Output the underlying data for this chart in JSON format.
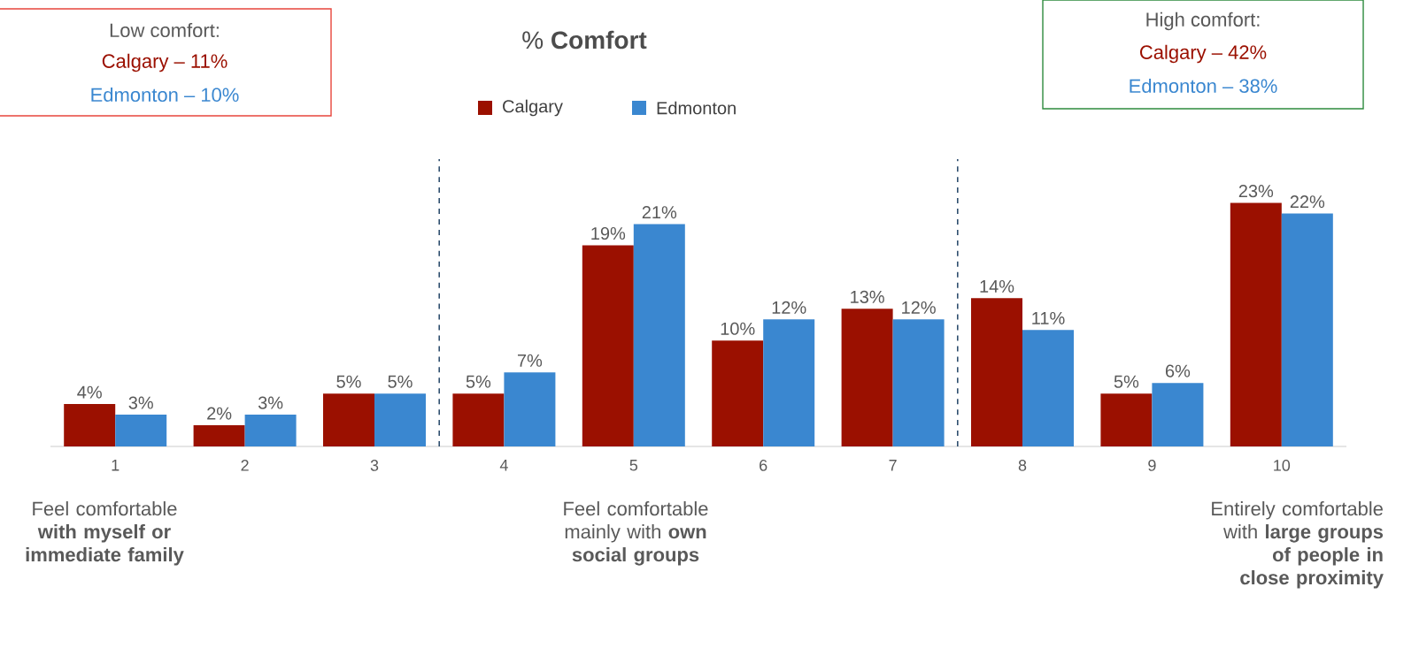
{
  "chart_data": {
    "type": "bar",
    "title": "% **Comfort**",
    "categories": [
      "1",
      "2",
      "3",
      "4",
      "5",
      "6",
      "7",
      "8",
      "9",
      "10"
    ],
    "series": [
      {
        "name": "Calgary",
        "color": "#9b1000",
        "values": [
          4,
          2,
          5,
          5,
          19,
          10,
          13,
          14,
          5,
          23
        ],
        "value_labels": [
          "4%",
          "2%",
          "5%",
          "5%",
          "19%",
          "10%",
          "13%",
          "14%",
          "5%",
          "23%"
        ]
      },
      {
        "name": "Edmonton",
        "color": "#3a87d0",
        "values": [
          3,
          3,
          5,
          7,
          21,
          12,
          12,
          11,
          6,
          22
        ],
        "value_labels": [
          "3%",
          "3%",
          "5%",
          "7%",
          "21%",
          "12%",
          "12%",
          "11%",
          "6%",
          "22%"
        ]
      }
    ],
    "legend": "top",
    "grid": false,
    "annotations": [
      "Low comfort:",
      "Calgary – 11%",
      "Edmonton – 10%",
      "High comfort:",
      "Calgary – 42%",
      "Edmonton – 38%",
      "Feel comfortable **with myself or immediate family**",
      "Feel comfortable mainly with **own social groups**",
      "Entirely comfortable with **large groups of people in close proximity**"
    ]
  }
}
